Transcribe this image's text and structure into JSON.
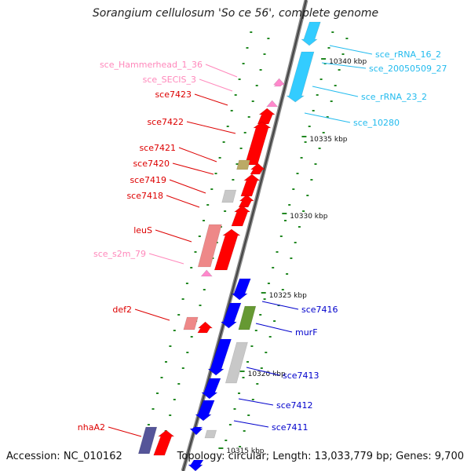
{
  "title": "Sorangium cellulosum 'So ce 56', complete genome",
  "footer": {
    "accession": "Accession: NC_010162",
    "summary": "Topology: circular; Length: 13,033,779 bp; Genes: 9,700"
  },
  "colors": {
    "red_gene": "#ff0000",
    "blue_gene": "#0000ff",
    "cyan_gene": "#33ccff",
    "pink_label": "#ff88bb",
    "red_label": "#dd0000",
    "blue_label": "#0000cc",
    "cyan_label": "#22bbee",
    "grey_gene": "#c8c8c8",
    "olive_gene": "#669933",
    "khaki_gene": "#bbaa66",
    "purple_gene": "#555599",
    "tick_green": "#228822"
  },
  "ruler": [
    "10340 kbp",
    "10335 kbp",
    "10330 kbp",
    "10325 kbp",
    "10320 kbp",
    "10315 kbp"
  ],
  "labels": [
    "sce_Hammerhead_1_36",
    "sce_SECIS_3",
    "sce7423",
    "sce7422",
    "sce7421",
    "sce7420",
    "sce7419",
    "sce7418",
    "leuS",
    "sce_s2m_79",
    "def2",
    "nhaA2",
    "sce_rRNA_16_2",
    "sce_20050509_27",
    "sce_rRNA_23_2",
    "sce_10280",
    "sce7416",
    "murF",
    "sce7413",
    "sce7412",
    "sce7411"
  ]
}
